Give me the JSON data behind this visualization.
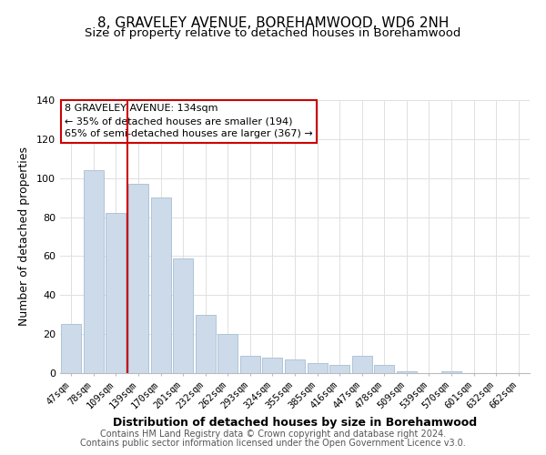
{
  "title": "8, GRAVELEY AVENUE, BOREHAMWOOD, WD6 2NH",
  "subtitle": "Size of property relative to detached houses in Borehamwood",
  "xlabel": "Distribution of detached houses by size in Borehamwood",
  "ylabel": "Number of detached properties",
  "bin_labels": [
    "47sqm",
    "78sqm",
    "109sqm",
    "139sqm",
    "170sqm",
    "201sqm",
    "232sqm",
    "262sqm",
    "293sqm",
    "324sqm",
    "355sqm",
    "385sqm",
    "416sqm",
    "447sqm",
    "478sqm",
    "509sqm",
    "539sqm",
    "570sqm",
    "601sqm",
    "632sqm",
    "662sqm"
  ],
  "bar_heights": [
    25,
    104,
    82,
    97,
    90,
    59,
    30,
    20,
    9,
    8,
    7,
    5,
    4,
    9,
    4,
    1,
    0,
    1,
    0,
    0,
    0
  ],
  "bar_color": "#ccdaea",
  "bar_edge_color": "#b0c4d8",
  "vline_index": 3,
  "vline_color": "#cc0000",
  "annotation_title": "8 GRAVELEY AVENUE: 134sqm",
  "annotation_line1": "← 35% of detached houses are smaller (194)",
  "annotation_line2": "65% of semi-detached houses are larger (367) →",
  "annotation_box_color": "#ffffff",
  "annotation_border_color": "#cc0000",
  "ylim": [
    0,
    140
  ],
  "yticks": [
    0,
    20,
    40,
    60,
    80,
    100,
    120,
    140
  ],
  "footer_line1": "Contains HM Land Registry data © Crown copyright and database right 2024.",
  "footer_line2": "Contains public sector information licensed under the Open Government Licence v3.0.",
  "title_fontsize": 11,
  "subtitle_fontsize": 9.5,
  "axis_label_fontsize": 9,
  "tick_fontsize": 7.5,
  "footer_fontsize": 7,
  "annotation_fontsize": 8
}
